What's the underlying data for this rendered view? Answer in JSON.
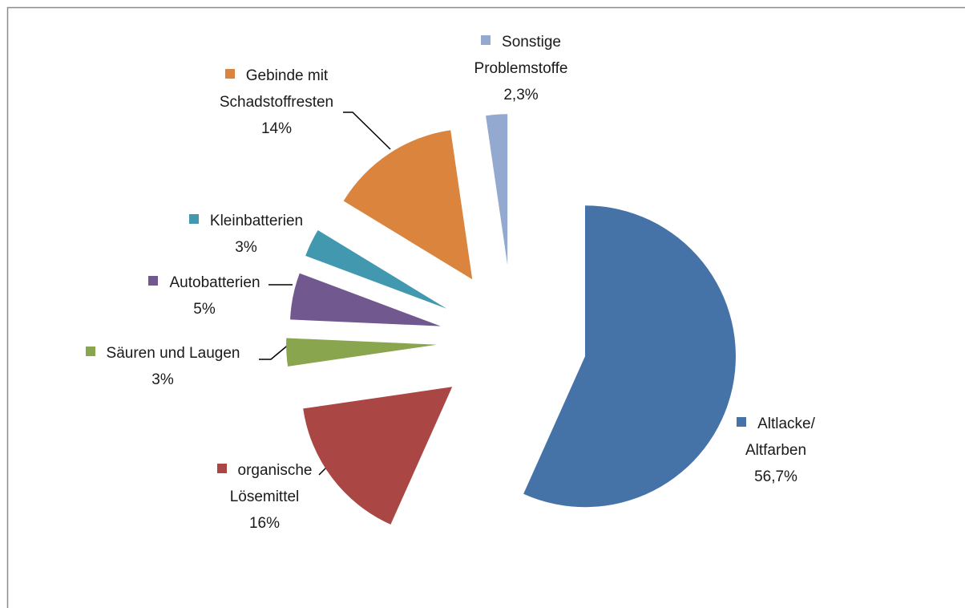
{
  "chart_data": {
    "type": "pie",
    "categories": [
      "Altlacke/ Altfarben",
      "organische Lösemittel",
      "Säuren und Laugen",
      "Autobatterien",
      "Kleinbatterien",
      "Gebinde mit Schadstoffresten",
      "Sonstige Problemstoffe"
    ],
    "values": [
      56.7,
      16,
      3,
      5,
      3,
      14,
      2.3
    ],
    "value_labels": [
      "56,7%",
      "16%",
      "3%",
      "5%",
      "3%",
      "14%",
      "2,3%"
    ],
    "colors": [
      "#4572a7",
      "#aa4643",
      "#89a54e",
      "#71588f",
      "#4198af",
      "#db843d",
      "#93a9cf"
    ]
  }
}
